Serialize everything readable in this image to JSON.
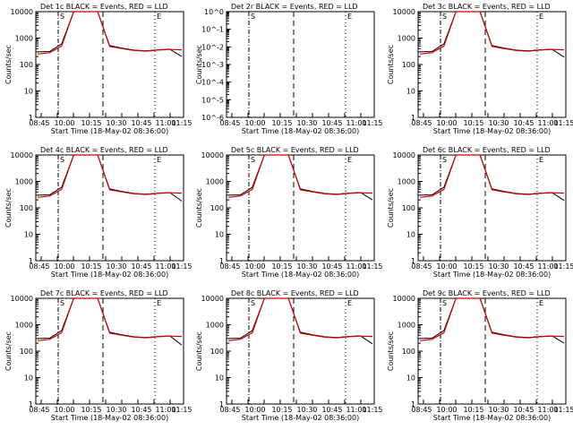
{
  "chart_data": [
    {
      "type": "line",
      "title": "Det 1c BLACK = Events, RED = LLD",
      "ylabel": "Counts/sec",
      "xlabel": "Start Time (18-May-02 08:36:00)",
      "yscale": "log",
      "ylim": [
        1,
        10000
      ],
      "ytick_labels": [
        "1",
        "10",
        "100",
        "1000",
        "10000"
      ],
      "xtick_labels": [
        "08:45",
        "10:00",
        "10:15",
        "10:30",
        "10:45",
        "11:00",
        "11:15"
      ],
      "markers": [
        "S",
        "E"
      ],
      "series": [
        {
          "color": "#000000",
          "values": [
            300,
            310,
            600,
            10000,
            10000,
            10000,
            520,
            420,
            350,
            330,
            360,
            380,
            200
          ]
        },
        {
          "color": "#d00000",
          "values": [
            250,
            280,
            500,
            10000,
            10000,
            10000,
            480,
            400,
            340,
            320,
            350,
            370,
            360
          ]
        }
      ]
    },
    {
      "type": "line",
      "title": "Det 2r BLACK = Events, RED = LLD",
      "ylabel": "Counts/sec",
      "xlabel": "Start Time (18-May-02 08:36:00)",
      "yscale": "log",
      "ylim": [
        1e-06,
        1
      ],
      "ytick_labels": [
        "10^-6",
        "10^-5",
        "10^-4",
        "10^-3",
        "10^-2",
        "10^-1",
        "10^0"
      ],
      "xtick_labels": [
        "08:45",
        "10:00",
        "10:15",
        "10:30",
        "10:45",
        "11:00",
        "11:15"
      ],
      "markers": [
        "S",
        "E"
      ],
      "series": []
    },
    {
      "type": "line",
      "title": "Det 3c BLACK = Events, RED = LLD",
      "ylabel": "Counts/sec",
      "xlabel": "Start Time (18-May-02 08:36:00)",
      "yscale": "log",
      "ylim": [
        1,
        10000
      ],
      "ytick_labels": [
        "1",
        "10",
        "100",
        "1000",
        "10000"
      ],
      "xtick_labels": [
        "08:45",
        "10:00",
        "10:15",
        "10:30",
        "10:45",
        "11:00",
        "11:15"
      ],
      "markers": [
        "S",
        "E"
      ],
      "series": [
        {
          "color": "#000000",
          "values": [
            300,
            310,
            600,
            10000,
            10000,
            10000,
            520,
            420,
            350,
            330,
            360,
            380,
            190
          ]
        },
        {
          "color": "#d00000",
          "values": [
            250,
            280,
            500,
            10000,
            10000,
            10000,
            480,
            400,
            340,
            320,
            350,
            370,
            360
          ]
        }
      ]
    },
    {
      "type": "line",
      "title": "Det 4c BLACK = Events, RED = LLD",
      "ylabel": "Counts/sec",
      "xlabel": "Start Time (18-May-02 08:36:00)",
      "yscale": "log",
      "ylim": [
        1,
        10000
      ],
      "ytick_labels": [
        "1",
        "10",
        "100",
        "1000",
        "10000"
      ],
      "xtick_labels": [
        "08:45",
        "10:00",
        "10:15",
        "10:30",
        "10:45",
        "11:00",
        "11:15"
      ],
      "markers": [
        "S",
        "E"
      ],
      "series": [
        {
          "color": "#000000",
          "values": [
            300,
            310,
            600,
            10000,
            10000,
            10000,
            520,
            420,
            350,
            330,
            360,
            380,
            180
          ]
        },
        {
          "color": "#d00000",
          "values": [
            250,
            280,
            500,
            10000,
            10000,
            10000,
            480,
            400,
            340,
            320,
            350,
            370,
            360
          ]
        }
      ]
    },
    {
      "type": "line",
      "title": "Det 5c BLACK = Events, RED = LLD",
      "ylabel": "Counts/sec",
      "xlabel": "Start Time (18-May-02 08:36:00)",
      "yscale": "log",
      "ylim": [
        1,
        10000
      ],
      "ytick_labels": [
        "1",
        "10",
        "100",
        "1000",
        "10000"
      ],
      "xtick_labels": [
        "08:45",
        "10:00",
        "10:15",
        "10:30",
        "10:45",
        "11:00",
        "11:15"
      ],
      "markers": [
        "S",
        "E"
      ],
      "series": [
        {
          "color": "#000000",
          "values": [
            300,
            310,
            600,
            10000,
            10000,
            10000,
            520,
            420,
            350,
            330,
            360,
            380,
            200
          ]
        },
        {
          "color": "#d00000",
          "values": [
            250,
            280,
            500,
            10000,
            10000,
            10000,
            480,
            400,
            340,
            320,
            350,
            370,
            360
          ]
        }
      ]
    },
    {
      "type": "line",
      "title": "Det 6c BLACK = Events, RED = LLD",
      "ylabel": "Counts/sec",
      "xlabel": "Start Time (18-May-02 08:36:00)",
      "yscale": "log",
      "ylim": [
        1,
        10000
      ],
      "ytick_labels": [
        "1",
        "10",
        "100",
        "1000",
        "10000"
      ],
      "xtick_labels": [
        "08:45",
        "10:00",
        "10:15",
        "10:30",
        "10:45",
        "11:00",
        "11:15"
      ],
      "markers": [
        "S",
        "E"
      ],
      "series": [
        {
          "color": "#000000",
          "values": [
            300,
            310,
            600,
            10000,
            10000,
            10000,
            520,
            420,
            350,
            330,
            360,
            380,
            190
          ]
        },
        {
          "color": "#d00000",
          "values": [
            250,
            280,
            500,
            10000,
            10000,
            10000,
            480,
            400,
            340,
            320,
            350,
            370,
            360
          ]
        }
      ]
    },
    {
      "type": "line",
      "title": "Det 7c BLACK = Events, RED = LLD",
      "ylabel": "Counts/sec",
      "xlabel": "Start Time (18-May-02 08:36:00)",
      "yscale": "log",
      "ylim": [
        1,
        10000
      ],
      "ytick_labels": [
        "1",
        "10",
        "100",
        "1000",
        "10000"
      ],
      "xtick_labels": [
        "08:45",
        "10:00",
        "10:15",
        "10:30",
        "10:45",
        "11:00",
        "11:15"
      ],
      "markers": [
        "S",
        "E"
      ],
      "series": [
        {
          "color": "#000000",
          "values": [
            300,
            310,
            600,
            10000,
            10000,
            10000,
            520,
            420,
            350,
            330,
            360,
            380,
            170
          ]
        },
        {
          "color": "#d00000",
          "values": [
            250,
            280,
            500,
            10000,
            10000,
            10000,
            480,
            400,
            340,
            320,
            350,
            370,
            360
          ]
        }
      ]
    },
    {
      "type": "line",
      "title": "Det 8c BLACK = Events, RED = LLD",
      "ylabel": "Counts/sec",
      "xlabel": "Start Time (18-May-02 08:36:00)",
      "yscale": "log",
      "ylim": [
        1,
        10000
      ],
      "ytick_labels": [
        "1",
        "10",
        "100",
        "1000",
        "10000"
      ],
      "xtick_labels": [
        "08:45",
        "10:00",
        "10:15",
        "10:30",
        "10:45",
        "11:00",
        "11:15"
      ],
      "markers": [
        "S",
        "E"
      ],
      "series": [
        {
          "color": "#000000",
          "values": [
            300,
            310,
            600,
            10000,
            10000,
            10000,
            520,
            420,
            350,
            330,
            360,
            380,
            190
          ]
        },
        {
          "color": "#d00000",
          "values": [
            250,
            280,
            500,
            10000,
            10000,
            10000,
            480,
            400,
            340,
            320,
            350,
            370,
            360
          ]
        }
      ]
    },
    {
      "type": "line",
      "title": "Det 9c BLACK = Events, RED = LLD",
      "ylabel": "Counts/sec",
      "xlabel": "Start Time (18-May-02 08:36:00)",
      "yscale": "log",
      "ylim": [
        1,
        10000
      ],
      "ytick_labels": [
        "1",
        "10",
        "100",
        "1000",
        "10000"
      ],
      "xtick_labels": [
        "08:45",
        "10:00",
        "10:15",
        "10:30",
        "10:45",
        "11:00",
        "11:15"
      ],
      "markers": [
        "S",
        "E"
      ],
      "series": [
        {
          "color": "#000000",
          "values": [
            300,
            310,
            600,
            10000,
            10000,
            10000,
            520,
            420,
            350,
            330,
            360,
            380,
            200
          ]
        },
        {
          "color": "#d00000",
          "values": [
            250,
            280,
            500,
            10000,
            10000,
            10000,
            480,
            400,
            340,
            320,
            350,
            370,
            360
          ]
        }
      ]
    }
  ]
}
